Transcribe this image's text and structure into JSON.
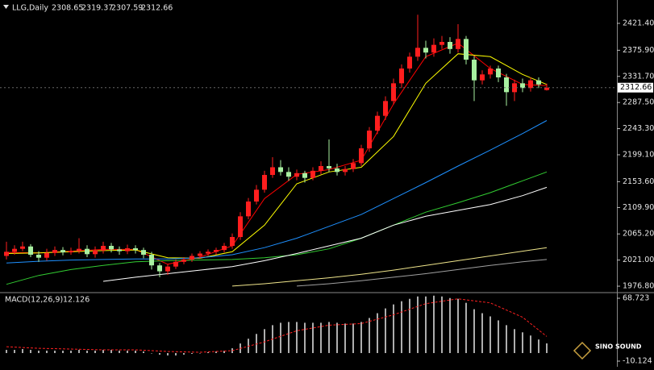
{
  "chart_data": [
    {
      "type": "candlestick",
      "title": "LLG,Daily",
      "up_color": "#ff1e1e",
      "down_color": "#a8f0a0",
      "open": [
        2028,
        2035,
        2040,
        2044,
        2030,
        2025,
        2033,
        2038,
        2034,
        2036,
        2040,
        2031,
        2037,
        2045,
        2039,
        2036,
        2041,
        2038,
        2030,
        2012,
        2002,
        2010,
        2018,
        2022,
        2028,
        2032,
        2035,
        2038,
        2045,
        2060,
        2095,
        2120,
        2140,
        2165,
        2178,
        2170,
        2162,
        2168,
        2160,
        2172,
        2180,
        2176,
        2170,
        2175,
        2185,
        2210,
        2240,
        2265,
        2290,
        2320,
        2345,
        2365,
        2380,
        2372,
        2385,
        2390,
        2378,
        2395,
        2360,
        2325,
        2335,
        2345,
        2330,
        2305,
        2320,
        2312,
        2325,
        2308.65
      ],
      "high": [
        2052,
        2046,
        2052,
        2048,
        2036,
        2040,
        2044,
        2043,
        2042,
        2058,
        2046,
        2044,
        2052,
        2050,
        2044,
        2047,
        2046,
        2042,
        2035,
        2016,
        2014,
        2022,
        2026,
        2032,
        2036,
        2039,
        2042,
        2050,
        2066,
        2102,
        2126,
        2148,
        2172,
        2195,
        2190,
        2178,
        2174,
        2172,
        2178,
        2188,
        2225,
        2184,
        2180,
        2192,
        2216,
        2246,
        2272,
        2298,
        2328,
        2352,
        2372,
        2436,
        2392,
        2396,
        2400,
        2398,
        2420,
        2400,
        2366,
        2342,
        2350,
        2350,
        2336,
        2326,
        2328,
        2330,
        2330,
        2319.37
      ],
      "low": [
        2022,
        2030,
        2036,
        2026,
        2018,
        2020,
        2028,
        2029,
        2030,
        2032,
        2026,
        2025,
        2032,
        2034,
        2030,
        2031,
        2032,
        2024,
        2005,
        1992,
        1996,
        2006,
        2014,
        2018,
        2024,
        2028,
        2030,
        2034,
        2040,
        2055,
        2090,
        2115,
        2135,
        2160,
        2164,
        2155,
        2156,
        2152,
        2156,
        2166,
        2170,
        2164,
        2164,
        2170,
        2180,
        2204,
        2234,
        2258,
        2284,
        2312,
        2338,
        2358,
        2362,
        2365,
        2378,
        2370,
        2372,
        2352,
        2290,
        2318,
        2328,
        2322,
        2282,
        2290,
        2305,
        2306,
        2312,
        2307.59
      ],
      "close": [
        2035,
        2040,
        2044,
        2030,
        2025,
        2033,
        2038,
        2034,
        2036,
        2040,
        2031,
        2037,
        2045,
        2039,
        2036,
        2041,
        2038,
        2030,
        2012,
        2002,
        2010,
        2018,
        2022,
        2028,
        2032,
        2035,
        2038,
        2045,
        2060,
        2095,
        2120,
        2140,
        2165,
        2178,
        2170,
        2162,
        2168,
        2160,
        2172,
        2180,
        2176,
        2170,
        2175,
        2185,
        2210,
        2240,
        2265,
        2290,
        2320,
        2345,
        2365,
        2380,
        2372,
        2385,
        2390,
        2378,
        2395,
        2360,
        2325,
        2335,
        2345,
        2330,
        2305,
        2320,
        2312,
        2325,
        2318,
        2312.66
      ],
      "series": [
        {
          "color": "#ff0000",
          "x": [
            0,
            4,
            8,
            12,
            16,
            20,
            24,
            28,
            32,
            36,
            40,
            44,
            48,
            52,
            56,
            60,
            64,
            67
          ],
          "values": [
            2034,
            2033,
            2036,
            2039,
            2039,
            2014,
            2026,
            2045,
            2125,
            2166,
            2174,
            2190,
            2285,
            2365,
            2388,
            2345,
            2318,
            2316
          ]
        },
        {
          "color": "#ffff00",
          "x": [
            0,
            4,
            8,
            12,
            16,
            20,
            24,
            28,
            32,
            36,
            40,
            44,
            48,
            52,
            56,
            60,
            64,
            67
          ],
          "values": [
            2032,
            2033,
            2035,
            2037,
            2038,
            2025,
            2024,
            2035,
            2080,
            2150,
            2170,
            2178,
            2230,
            2320,
            2370,
            2365,
            2335,
            2318
          ]
        },
        {
          "color": "#1e90ff",
          "x": [
            0,
            4,
            8,
            12,
            16,
            20,
            24,
            28,
            32,
            36,
            40,
            44,
            48,
            52,
            56,
            60,
            64,
            67
          ],
          "values": [
            2016,
            2019,
            2021,
            2022,
            2023,
            2023,
            2025,
            2030,
            2042,
            2058,
            2078,
            2098,
            2125,
            2152,
            2180,
            2207,
            2235,
            2257
          ]
        },
        {
          "color": "#32cd32",
          "x": [
            0,
            4,
            8,
            12,
            16,
            20,
            24,
            28,
            32,
            36,
            40,
            44,
            48,
            52,
            56,
            60,
            64,
            67
          ],
          "values": [
            1980,
            1995,
            2005,
            2012,
            2018,
            2020,
            2021,
            2022,
            2025,
            2030,
            2040,
            2058,
            2080,
            2102,
            2118,
            2135,
            2155,
            2170
          ]
        },
        {
          "color": "#ffffff",
          "x": [
            0,
            4,
            8,
            12,
            16,
            20,
            24,
            28,
            32,
            36,
            40,
            44,
            48,
            52,
            56,
            60,
            64,
            67
          ],
          "values": [
            null,
            null,
            null,
            1985,
            1992,
            1998,
            2004,
            2010,
            2020,
            2032,
            2045,
            2058,
            2080,
            2095,
            2105,
            2115,
            2130,
            2144
          ]
        },
        {
          "color": "#f0e68c",
          "x": [
            28,
            32,
            36,
            40,
            44,
            48,
            52,
            56,
            60,
            64,
            67
          ],
          "values": [
            1977,
            1981,
            1986,
            1991,
            1997,
            2004,
            2012,
            2020,
            2028,
            2036,
            2042
          ]
        },
        {
          "color": "#a0a0a0",
          "x": [
            36,
            40,
            44,
            48,
            52,
            56,
            60,
            64,
            67
          ],
          "values": [
            1977,
            1981,
            1986,
            1992,
            1998,
            2005,
            2012,
            2018,
            2022
          ]
        }
      ],
      "ylim": [
        1967.3,
        2460.9
      ],
      "yticks": [
        {
          "value": 2421.4,
          "label": "2421.40"
        },
        {
          "value": 2375.9,
          "label": "2375.90"
        },
        {
          "value": 2331.7,
          "label": "2331.70"
        },
        {
          "value": 2287.5,
          "label": "2287.50"
        },
        {
          "value": 2243.3,
          "label": "2243.30"
        },
        {
          "value": 2199.1,
          "label": "2199.10"
        },
        {
          "value": 2153.6,
          "label": "2153.60"
        },
        {
          "value": 2109.9,
          "label": "2109.90"
        },
        {
          "value": 2065.2,
          "label": "2065.20"
        },
        {
          "value": 2021,
          "label": "2021.00"
        },
        {
          "value": 1976.8,
          "label": "1976.80"
        }
      ]
    },
    {
      "type": "macd",
      "label": "MACD(12,26,9)",
      "histogram": [
        4,
        4,
        5,
        4,
        3,
        3,
        3,
        3,
        3,
        4,
        3,
        3,
        4,
        4,
        3,
        3,
        3,
        2,
        0,
        -2,
        -3,
        -3,
        -2,
        -1,
        0,
        1,
        2,
        3,
        6,
        12,
        18,
        24,
        30,
        35,
        38,
        39,
        39,
        38,
        38,
        38,
        39,
        38,
        37,
        37,
        39,
        44,
        50,
        56,
        61,
        65,
        68,
        71,
        71,
        72,
        71,
        69,
        68,
        63,
        55,
        50,
        46,
        41,
        35,
        30,
        26,
        22,
        17,
        12.126
      ],
      "histogram_color": "#e8e8e8",
      "signal": {
        "color": "#ff2020",
        "x": [
          0,
          4,
          8,
          12,
          16,
          20,
          24,
          28,
          32,
          36,
          40,
          44,
          48,
          52,
          56,
          60,
          64,
          67
        ],
        "values": [
          8,
          6,
          5,
          4,
          4,
          2,
          1,
          3,
          14,
          28,
          35,
          37,
          48,
          62,
          68,
          63,
          45,
          20.817
        ]
      },
      "ylim": [
        -17.2,
        74.8
      ],
      "yticks": [
        68.723,
        -10.124
      ]
    }
  ],
  "watermark": {
    "text": "SINO SOUND"
  }
}
